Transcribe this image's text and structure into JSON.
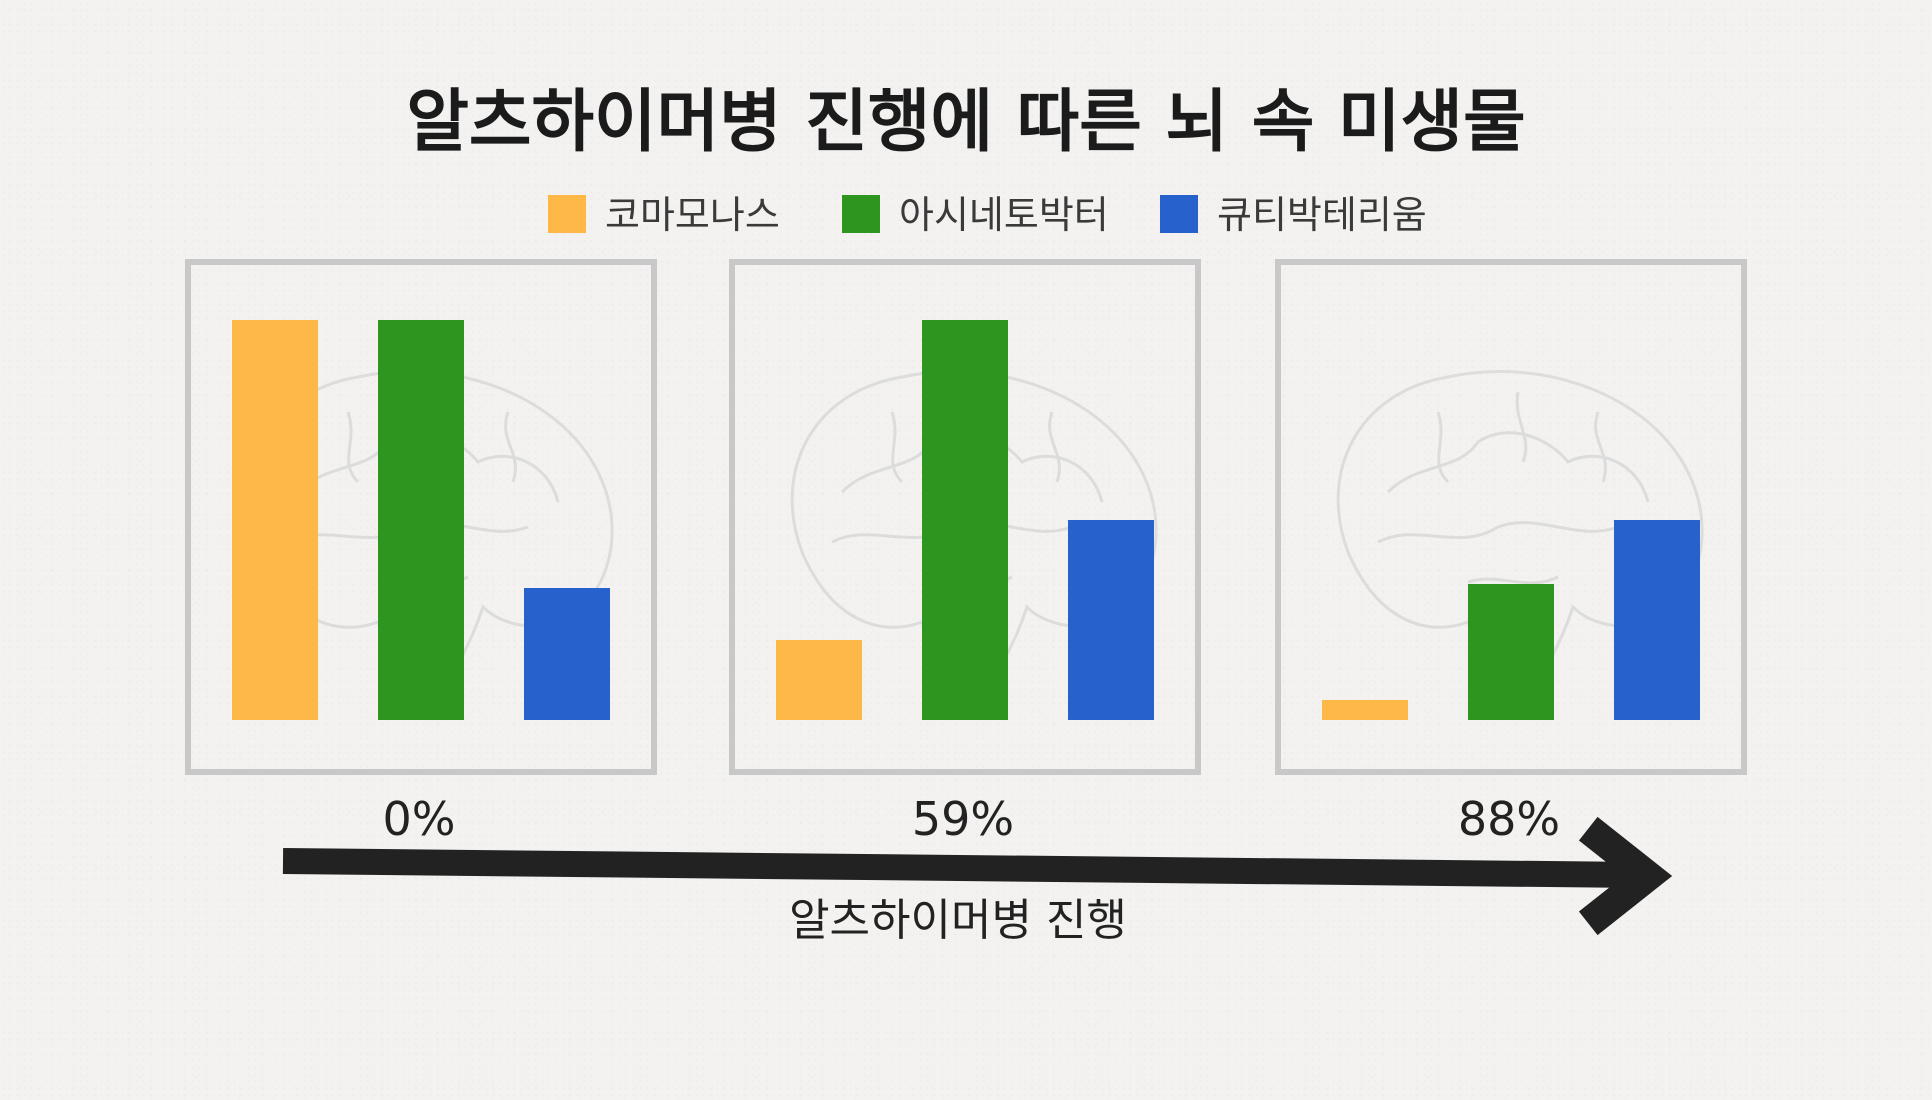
{
  "chart_data": {
    "type": "bar",
    "title": "알츠하이머병 진행에 따른 뇌 속 미생물",
    "xlabel": "알츠하이머병 진행",
    "categories": [
      "0%",
      "59%",
      "88%"
    ],
    "series": [
      {
        "name": "코마모나스",
        "color": "#fdb847",
        "values": [
          100,
          20,
          5
        ]
      },
      {
        "name": "아시네토박터",
        "color": "#2e961f",
        "values": [
          100,
          100,
          34
        ]
      },
      {
        "name": "큐티박테리움",
        "color": "#2761cc",
        "values": [
          33,
          50,
          50
        ]
      }
    ],
    "ylim": [
      0,
      100
    ],
    "legend_position": "top-center",
    "grid": false,
    "background_icon": "brain-icon",
    "arrow_color": "#222222"
  }
}
